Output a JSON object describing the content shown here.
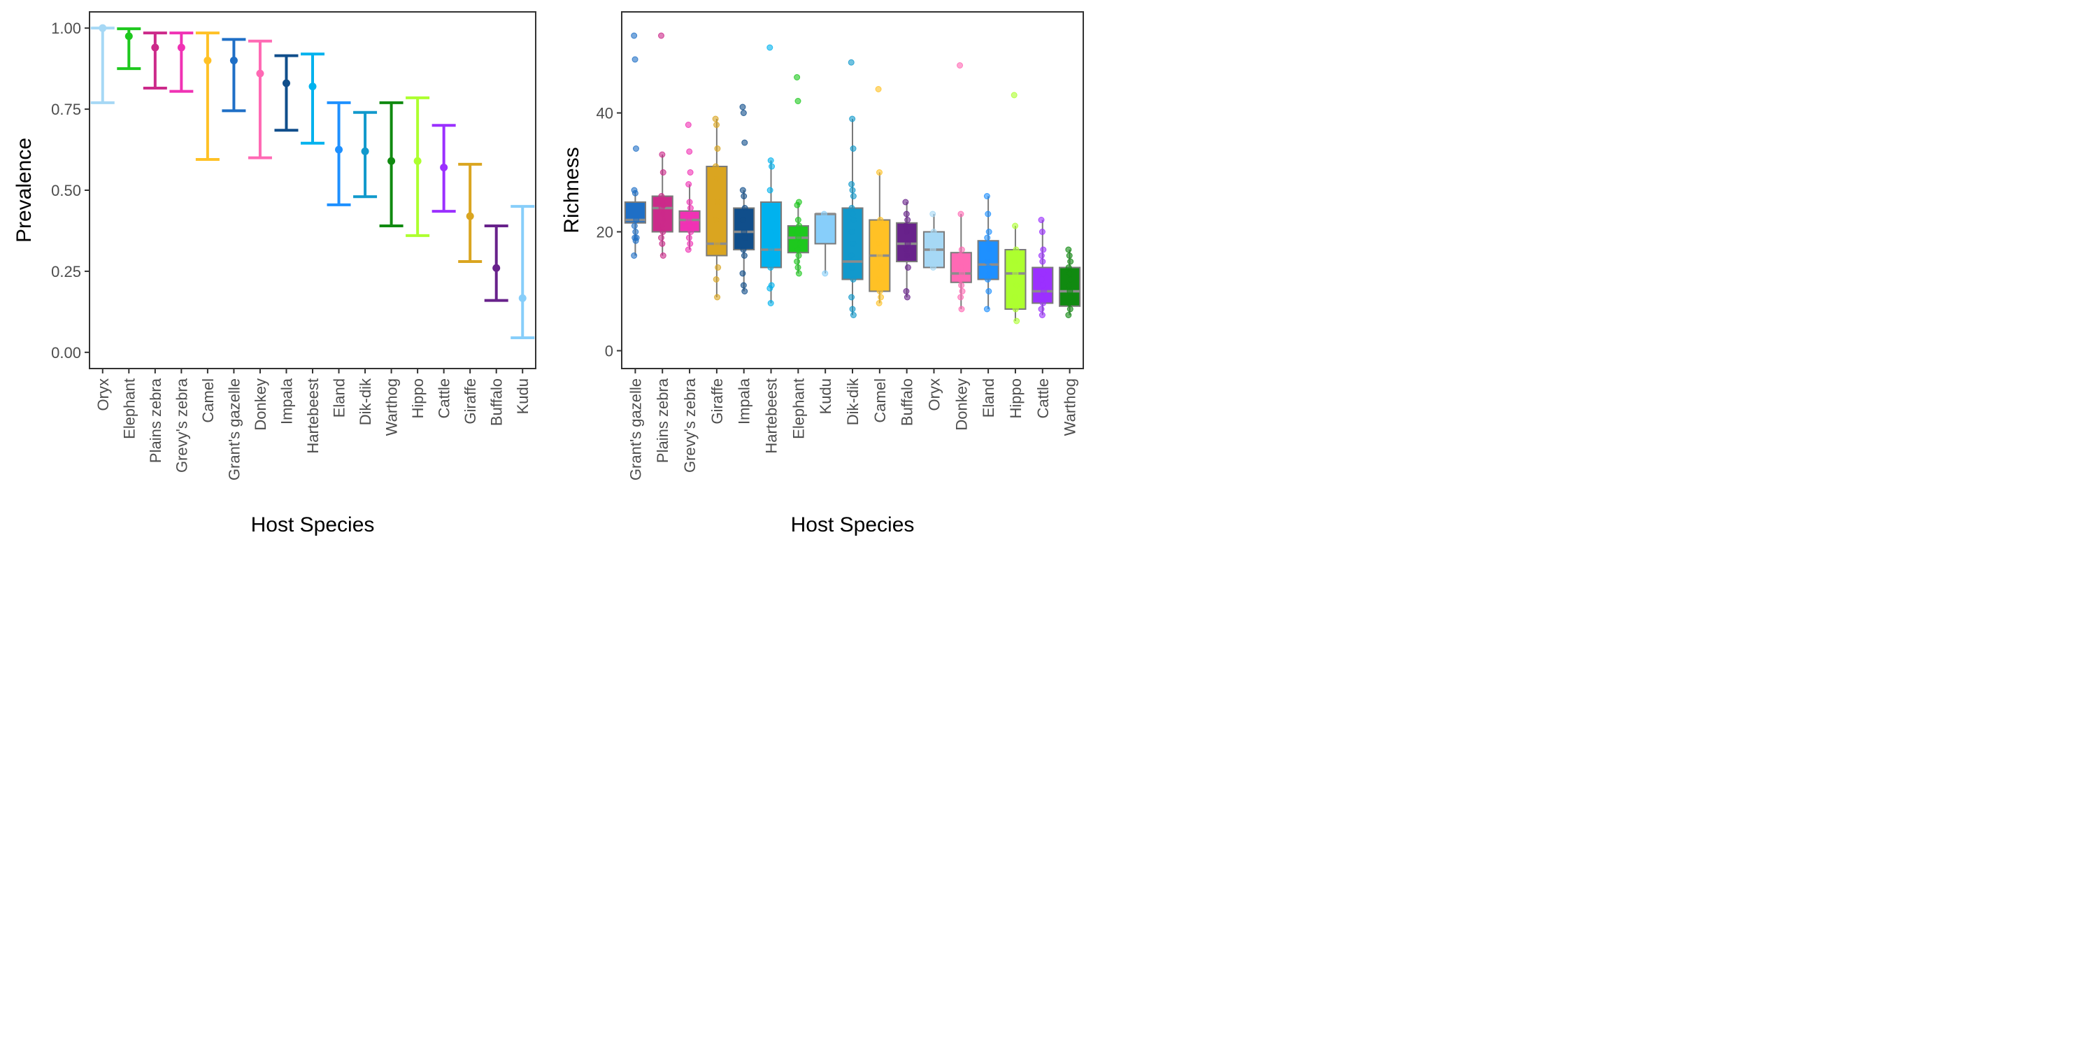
{
  "chart_data": [
    {
      "type": "errorbar",
      "xlabel": "Host Species",
      "ylabel": "Prevalence",
      "ylim": [
        -0.05,
        1.05
      ],
      "y_ticks": [
        0.0,
        0.25,
        0.5,
        0.75,
        1.0
      ],
      "y_tick_labels": [
        "0.00",
        "0.25",
        "0.50",
        "0.75",
        "1.00"
      ],
      "grid": false,
      "categories": [
        "Oryx",
        "Elephant",
        "Plains zebra",
        "Grevy's zebra",
        "Camel",
        "Grant's gazelle",
        "Donkey",
        "Impala",
        "Hartebeest",
        "Eland",
        "Dik-dik",
        "Warthog",
        "Hippo",
        "Cattle",
        "Giraffe",
        "Buffalo",
        "Kudu"
      ],
      "estimates": [
        1.0,
        0.975,
        0.94,
        0.94,
        0.9,
        0.9,
        0.86,
        0.83,
        0.82,
        0.625,
        0.62,
        0.59,
        0.59,
        0.57,
        0.42,
        0.26,
        0.167
      ],
      "lower": [
        0.77,
        0.875,
        0.815,
        0.805,
        0.595,
        0.745,
        0.6,
        0.685,
        0.645,
        0.455,
        0.48,
        0.39,
        0.36,
        0.435,
        0.28,
        0.16,
        0.045
      ],
      "upper": [
        1.0,
        0.998,
        0.985,
        0.985,
        0.985,
        0.965,
        0.96,
        0.915,
        0.92,
        0.77,
        0.74,
        0.77,
        0.785,
        0.7,
        0.58,
        0.39,
        0.45
      ],
      "colors": [
        "#a6d8f5",
        "#1ec81e",
        "#cc2a8a",
        "#f032b4",
        "#ffc125",
        "#1f6fc6",
        "#ff69b4",
        "#104e8b",
        "#00b2ee",
        "#1e90ff",
        "#1199cc",
        "#108a10",
        "#adff2f",
        "#9b30ff",
        "#daa520",
        "#68228b",
        "#87cefa"
      ]
    },
    {
      "type": "box",
      "xlabel": "Host Species",
      "ylabel": "Richness",
      "ylim": [
        -3,
        57
      ],
      "y_ticks": [
        0,
        20,
        40
      ],
      "y_tick_labels": [
        "0",
        "20",
        "40"
      ],
      "grid": false,
      "categories": [
        "Grant's gazelle",
        "Plains zebra",
        "Grevy's zebra",
        "Giraffe",
        "Impala",
        "Hartebeest",
        "Elephant",
        "Kudu",
        "Dik-dik",
        "Camel",
        "Buffalo",
        "Oryx",
        "Donkey",
        "Eland",
        "Hippo",
        "Cattle",
        "Warthog"
      ],
      "colors": [
        "#1f6fc6",
        "#cc2a8a",
        "#f032b4",
        "#daa520",
        "#104e8b",
        "#00b2ee",
        "#1ec81e",
        "#87cefa",
        "#1199cc",
        "#ffc125",
        "#68228b",
        "#a6d8f5",
        "#ff69b4",
        "#1e90ff",
        "#adff2f",
        "#9b30ff",
        "#108a10"
      ],
      "boxes": [
        {
          "q1": 21.5,
          "median": 22,
          "q3": 25,
          "lo": 16,
          "hi": 27
        },
        {
          "q1": 20,
          "median": 24,
          "q3": 26,
          "lo": 16,
          "hi": 33
        },
        {
          "q1": 20,
          "median": 22,
          "q3": 23.5,
          "lo": 17,
          "hi": 28
        },
        {
          "q1": 16,
          "median": 18,
          "q3": 31,
          "lo": 9,
          "hi": 39
        },
        {
          "q1": 17,
          "median": 20,
          "q3": 24,
          "lo": 10,
          "hi": 27
        },
        {
          "q1": 14,
          "median": 17,
          "q3": 25,
          "lo": 8,
          "hi": 32
        },
        {
          "q1": 16.5,
          "median": 19,
          "q3": 21,
          "lo": 13,
          "hi": 25
        },
        {
          "q1": 18,
          "median": 23,
          "q3": 23,
          "lo": 13,
          "hi": 23
        },
        {
          "q1": 12,
          "median": 15,
          "q3": 24,
          "lo": 6,
          "hi": 39
        },
        {
          "q1": 10,
          "median": 16,
          "q3": 22,
          "lo": 8,
          "hi": 30
        },
        {
          "q1": 15,
          "median": 18,
          "q3": 21.5,
          "lo": 9,
          "hi": 25
        },
        {
          "q1": 14,
          "median": 17,
          "q3": 20,
          "lo": 14,
          "hi": 23
        },
        {
          "q1": 11.5,
          "median": 13,
          "q3": 16.5,
          "lo": 7,
          "hi": 23
        },
        {
          "q1": 12,
          "median": 14.5,
          "q3": 18.5,
          "lo": 7,
          "hi": 26
        },
        {
          "q1": 7,
          "median": 13,
          "q3": 17,
          "lo": 5,
          "hi": 21
        },
        {
          "q1": 8,
          "median": 10,
          "q3": 14,
          "lo": 6,
          "hi": 22
        },
        {
          "q1": 7.5,
          "median": 10,
          "q3": 14,
          "lo": 6,
          "hi": 17
        }
      ],
      "points": [
        [
          53,
          49,
          34,
          27,
          26.5,
          22,
          21,
          20,
          19,
          19,
          18.5,
          16
        ],
        [
          53,
          33,
          30,
          26,
          25,
          24.5,
          24,
          23,
          22,
          21,
          20,
          19,
          18,
          16
        ],
        [
          38,
          33.5,
          30,
          28,
          25,
          24,
          22,
          21,
          20,
          19,
          18,
          17
        ],
        [
          39,
          38,
          34,
          31,
          29,
          25,
          22,
          18,
          14,
          12,
          9
        ],
        [
          41,
          40,
          35,
          27,
          26,
          24,
          22,
          20,
          19,
          17,
          16,
          13,
          11,
          10
        ],
        [
          51,
          32,
          31,
          27,
          24,
          22,
          20,
          17,
          16,
          14,
          11,
          10.5,
          8
        ],
        [
          46,
          42,
          25,
          24.5,
          22,
          21,
          20,
          19,
          18,
          17,
          16,
          15,
          14,
          13
        ],
        [
          23,
          13
        ],
        [
          48.5,
          39,
          34,
          28,
          27,
          26,
          24,
          23,
          22,
          20,
          18,
          16,
          14,
          12,
          9,
          7,
          6
        ],
        [
          44,
          30,
          22,
          18,
          16,
          14,
          12,
          10,
          9,
          8
        ],
        [
          25,
          23,
          22,
          21,
          20,
          18,
          17,
          16,
          14,
          10,
          9
        ],
        [
          23,
          20,
          19,
          17,
          16,
          15,
          14
        ],
        [
          48,
          23,
          17,
          16,
          14,
          13,
          12,
          11,
          10,
          9,
          7
        ],
        [
          26,
          23,
          20,
          19,
          18,
          17,
          15,
          14,
          13,
          12,
          10,
          7
        ],
        [
          43,
          21,
          17,
          15,
          13,
          11,
          9,
          7,
          5
        ],
        [
          22,
          20,
          17,
          16,
          15,
          13,
          12,
          11,
          10,
          9,
          8,
          7,
          6
        ],
        [
          17,
          16,
          15,
          14,
          13,
          12,
          11,
          10,
          9,
          8,
          7,
          6
        ]
      ]
    }
  ]
}
